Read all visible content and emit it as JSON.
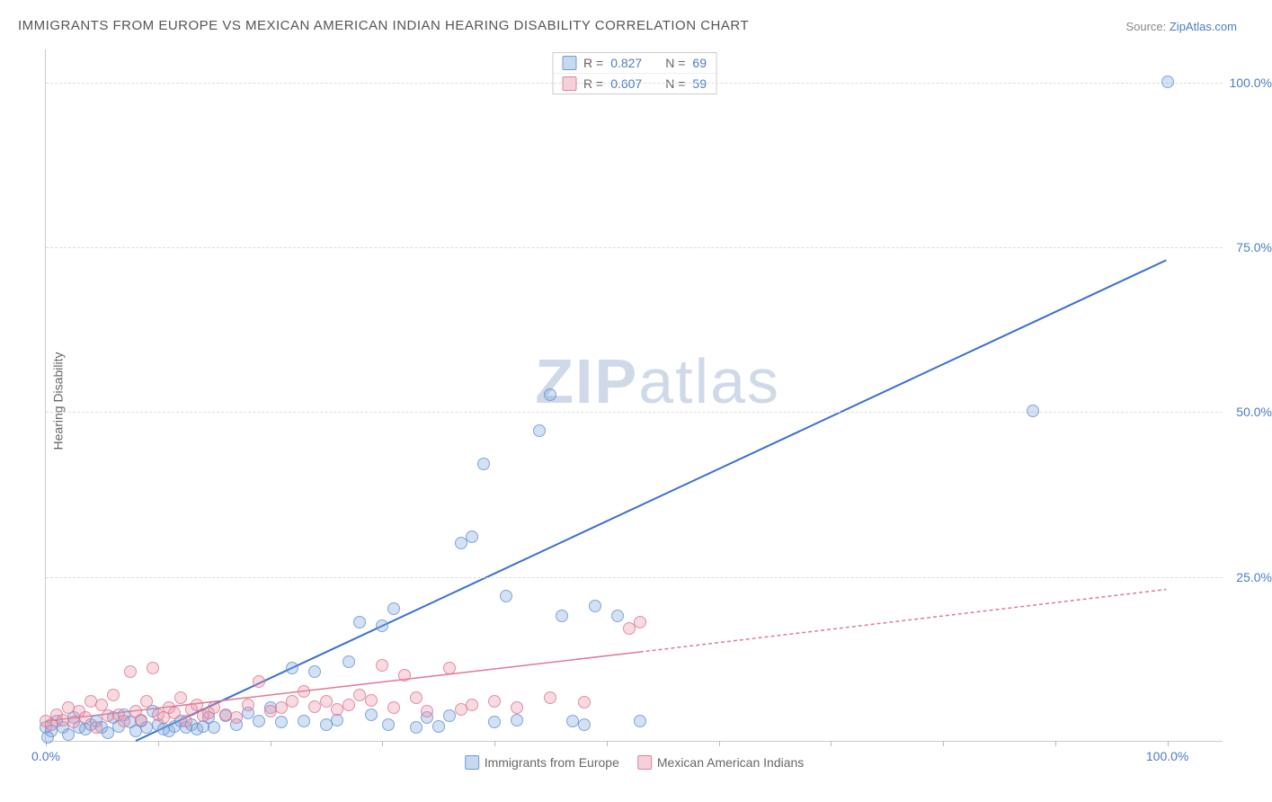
{
  "title": "IMMIGRANTS FROM EUROPE VS MEXICAN AMERICAN INDIAN HEARING DISABILITY CORRELATION CHART",
  "source_prefix": "Source: ",
  "source_link": "ZipAtlas.com",
  "ylabel": "Hearing Disability",
  "watermark_bold": "ZIP",
  "watermark_rest": "atlas",
  "chart": {
    "type": "scatter",
    "xlim": [
      0,
      105
    ],
    "ylim": [
      0,
      105
    ],
    "grid_color": "#dddddd",
    "background_color": "#ffffff",
    "ytick_labels": [
      "25.0%",
      "50.0%",
      "75.0%",
      "100.0%"
    ],
    "ytick_values": [
      25,
      50,
      75,
      100
    ],
    "xaxis_label_left": "0.0%",
    "xaxis_label_right": "100.0%",
    "xtick_values": [
      0,
      10,
      20,
      30,
      40,
      50,
      60,
      70,
      80,
      90,
      100
    ],
    "series": [
      {
        "name": "Immigrants from Europe",
        "label": "Immigrants from Europe",
        "color_fill": "rgba(130,170,220,0.35)",
        "color_stroke": "#5a8cd2",
        "marker_radius": 7,
        "R": "0.827",
        "N": "69",
        "trend": {
          "x1": 8,
          "y1": 0,
          "x2": 100,
          "y2": 73,
          "color": "#3a6fd0",
          "width": 2,
          "dash": "none"
        },
        "points": [
          [
            0,
            2
          ],
          [
            0.5,
            1.5
          ],
          [
            1,
            3
          ],
          [
            1.5,
            2
          ],
          [
            2,
            1
          ],
          [
            2.5,
            3.5
          ],
          [
            3,
            2
          ],
          [
            3.5,
            1.8
          ],
          [
            4,
            2.5
          ],
          [
            4.5,
            3
          ],
          [
            5,
            2
          ],
          [
            5.5,
            1.2
          ],
          [
            6,
            3.5
          ],
          [
            6.5,
            2.2
          ],
          [
            7,
            4
          ],
          [
            7.5,
            2.8
          ],
          [
            8,
            1.5
          ],
          [
            8.5,
            3
          ],
          [
            9,
            2
          ],
          [
            9.5,
            4.5
          ],
          [
            10,
            2.5
          ],
          [
            10.5,
            1.8
          ],
          [
            11,
            1.5
          ],
          [
            11.5,
            2.2
          ],
          [
            12,
            3
          ],
          [
            12.5,
            2
          ],
          [
            13,
            2.5
          ],
          [
            13.5,
            1.8
          ],
          [
            14,
            2.2
          ],
          [
            14.5,
            3.5
          ],
          [
            15,
            2
          ],
          [
            16,
            3.8
          ],
          [
            17,
            2.5
          ],
          [
            18,
            4.2
          ],
          [
            19,
            3
          ],
          [
            20,
            5
          ],
          [
            21,
            2.8
          ],
          [
            22,
            11
          ],
          [
            23,
            3
          ],
          [
            24,
            10.5
          ],
          [
            25,
            2.5
          ],
          [
            26,
            3.2
          ],
          [
            27,
            12
          ],
          [
            28,
            18
          ],
          [
            29,
            4
          ],
          [
            30,
            17.5
          ],
          [
            30.5,
            2.5
          ],
          [
            31,
            20
          ],
          [
            33,
            2
          ],
          [
            34,
            3.5
          ],
          [
            35,
            2.2
          ],
          [
            36,
            3.8
          ],
          [
            37,
            30
          ],
          [
            38,
            31
          ],
          [
            39,
            42
          ],
          [
            40,
            2.8
          ],
          [
            41,
            22
          ],
          [
            42,
            3.2
          ],
          [
            44,
            47
          ],
          [
            45,
            52.5
          ],
          [
            46,
            19
          ],
          [
            47,
            3
          ],
          [
            48,
            2.5
          ],
          [
            49,
            20.5
          ],
          [
            51,
            19
          ],
          [
            53,
            3
          ],
          [
            88,
            50
          ],
          [
            100,
            100
          ],
          [
            0.2,
            0.5
          ]
        ]
      },
      {
        "name": "Mexican American Indians",
        "label": "Mexican American Indians",
        "color_fill": "rgba(235,150,170,0.35)",
        "color_stroke": "#dc6e8c",
        "marker_radius": 7,
        "R": "0.607",
        "N": "59",
        "trend": {
          "x1": 0,
          "y1": 3,
          "x2": 53,
          "y2": 13.5,
          "x2_ext": 100,
          "y2_ext": 23,
          "color": "#e07a93",
          "width": 1.5,
          "dash": "4 3"
        },
        "points": [
          [
            0,
            3
          ],
          [
            0.5,
            2.5
          ],
          [
            1,
            4
          ],
          [
            1.5,
            3.2
          ],
          [
            2,
            5
          ],
          [
            2.5,
            2.8
          ],
          [
            3,
            4.5
          ],
          [
            3.5,
            3.5
          ],
          [
            4,
            6
          ],
          [
            4.5,
            2
          ],
          [
            5,
            5.5
          ],
          [
            5.5,
            3.8
          ],
          [
            6,
            7
          ],
          [
            6.5,
            4
          ],
          [
            7,
            3
          ],
          [
            7.5,
            10.5
          ],
          [
            8,
            4.5
          ],
          [
            8.5,
            3.2
          ],
          [
            9,
            6
          ],
          [
            9.5,
            11
          ],
          [
            10,
            4
          ],
          [
            10.5,
            3.5
          ],
          [
            11,
            5
          ],
          [
            11.5,
            4.2
          ],
          [
            12,
            6.5
          ],
          [
            12.5,
            3
          ],
          [
            13,
            4.8
          ],
          [
            13.5,
            5.5
          ],
          [
            14,
            3.8
          ],
          [
            14.5,
            4.2
          ],
          [
            15,
            5
          ],
          [
            16,
            4
          ],
          [
            17,
            3.5
          ],
          [
            18,
            5.5
          ],
          [
            19,
            9
          ],
          [
            20,
            4.5
          ],
          [
            21,
            5
          ],
          [
            22,
            6
          ],
          [
            23,
            7.5
          ],
          [
            24,
            5.2
          ],
          [
            25,
            6
          ],
          [
            26,
            4.8
          ],
          [
            27,
            5.5
          ],
          [
            28,
            7
          ],
          [
            29,
            6.2
          ],
          [
            30,
            11.5
          ],
          [
            31,
            5
          ],
          [
            32,
            10
          ],
          [
            33,
            6.5
          ],
          [
            34,
            4.5
          ],
          [
            36,
            11
          ],
          [
            37,
            4.8
          ],
          [
            38,
            5.5
          ],
          [
            40,
            6
          ],
          [
            42,
            5
          ],
          [
            45,
            6.5
          ],
          [
            48,
            5.8
          ],
          [
            52,
            17
          ],
          [
            53,
            18
          ]
        ]
      }
    ],
    "legend_top": {
      "R_label": "R =",
      "N_label": "N ="
    }
  }
}
